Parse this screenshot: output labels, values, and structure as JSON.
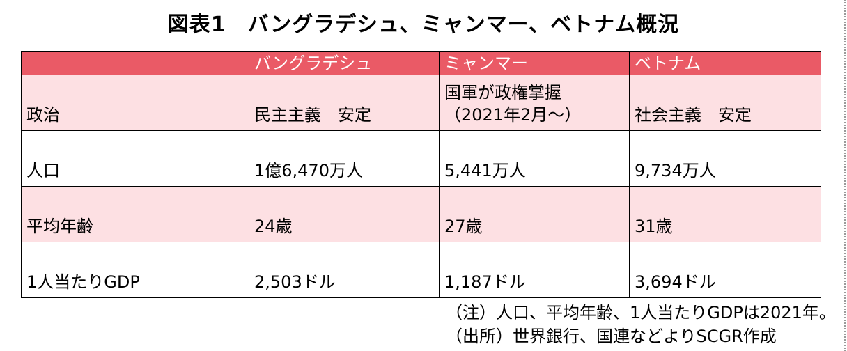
{
  "title": "図表1　バングラデシュ、ミャンマー、ベトナム概況",
  "table": {
    "headers": [
      "",
      "バングラデシュ",
      "ミャンマー",
      "ベトナム"
    ],
    "rows": [
      {
        "label": "政治",
        "cells": [
          [
            "民主主義　安定"
          ],
          [
            "国軍が政権掌握",
            "（2021年2月～）"
          ],
          [
            "社会主義　安定"
          ]
        ]
      },
      {
        "label": "人口",
        "cells": [
          [
            "1億6,470万人"
          ],
          [
            "5,441万人"
          ],
          [
            "9,734万人"
          ]
        ]
      },
      {
        "label": "平均年齢",
        "cells": [
          [
            "24歳"
          ],
          [
            "27歳"
          ],
          [
            "31歳"
          ]
        ]
      },
      {
        "label": "1人当たりGDP",
        "cells": [
          [
            "2,503ドル"
          ],
          [
            "1,187ドル"
          ],
          [
            "3,694ドル"
          ]
        ]
      }
    ]
  },
  "notes": [
    "（注）人口、平均年齢、1人当たりGDPは2021年。",
    "（出所）世界銀行、国連などよりSCGR作成"
  ],
  "colors": {
    "header": "#ea5a66",
    "pink_row": "#fde0e3"
  }
}
